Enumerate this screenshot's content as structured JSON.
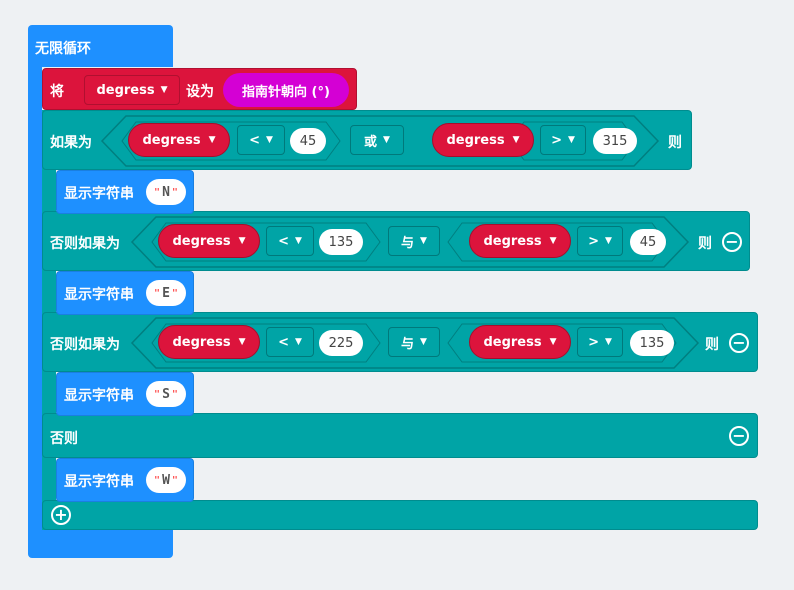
{
  "forever": {
    "label": "无限循环"
  },
  "set_block": {
    "prefix": "将",
    "variable": "degress",
    "set_to": "设为",
    "value": "指南针朝向 (°)"
  },
  "if_block": {
    "if_label": "如果为",
    "then_label": "则",
    "else_if_label": "否则如果为",
    "else_label": "否则",
    "conditions": [
      {
        "left_var": "degress",
        "op1": "<",
        "val1": "45",
        "logic": "或",
        "right_var": "degress",
        "op2": ">",
        "val2": "315"
      },
      {
        "left_var": "degress",
        "op1": "<",
        "val1": "135",
        "logic": "与",
        "right_var": "degress",
        "op2": ">",
        "val2": "45"
      },
      {
        "left_var": "degress",
        "op1": "<",
        "val1": "225",
        "logic": "与",
        "right_var": "degress",
        "op2": ">",
        "val2": "135"
      }
    ]
  },
  "show_string": {
    "label": "显示字符串",
    "values": [
      "N",
      "E",
      "S",
      "W"
    ]
  },
  "icons": {
    "minus": "minus-circle-icon",
    "plus": "plus-circle-icon",
    "caret": "caret-down-icon"
  },
  "colors": {
    "loop": "#1e90ff",
    "variable": "#dc143c",
    "logic": "#00a4a6",
    "compass": "#d400d4"
  }
}
